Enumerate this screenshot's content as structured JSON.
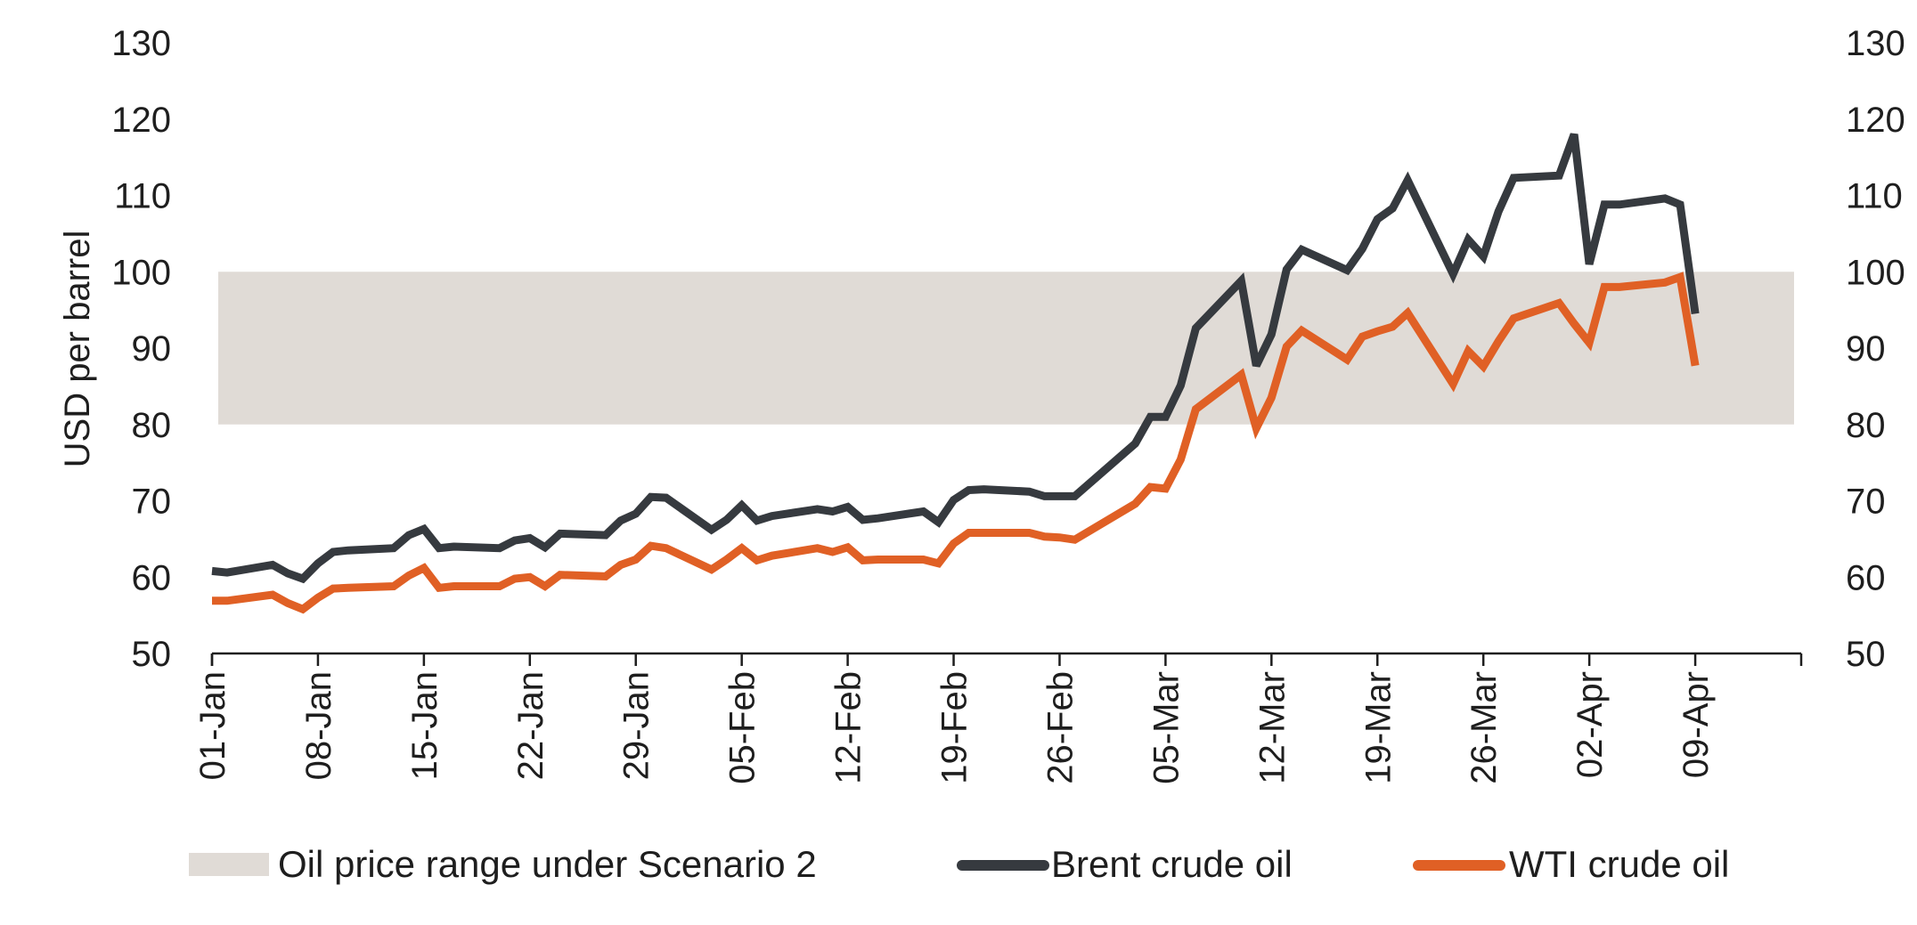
{
  "chart_data": {
    "type": "line",
    "title": "",
    "ylabel": "USD per barrel",
    "ylim": [
      50,
      130
    ],
    "yticks": [
      "50",
      "60",
      "70",
      "80",
      "90",
      "100",
      "110",
      "120",
      "130"
    ],
    "y2ticks": [
      "50",
      "60",
      "70",
      "80",
      "90",
      "100",
      "110",
      "120",
      "130"
    ],
    "x_start": "2022-01-01",
    "xlim": [
      "2022-01-01",
      "2022-04-16"
    ],
    "xticks": [
      {
        "date": "2022-01-01",
        "label": "01-Jan"
      },
      {
        "date": "2022-01-08",
        "label": "08-Jan"
      },
      {
        "date": "2022-01-15",
        "label": "15-Jan"
      },
      {
        "date": "2022-01-22",
        "label": "22-Jan"
      },
      {
        "date": "2022-01-29",
        "label": "29-Jan"
      },
      {
        "date": "2022-02-05",
        "label": "05-Feb"
      },
      {
        "date": "2022-02-12",
        "label": "12-Feb"
      },
      {
        "date": "2022-02-19",
        "label": "19-Feb"
      },
      {
        "date": "2022-02-26",
        "label": "26-Feb"
      },
      {
        "date": "2022-03-05",
        "label": "05-Mar"
      },
      {
        "date": "2022-03-12",
        "label": "12-Mar"
      },
      {
        "date": "2022-03-19",
        "label": "19-Mar"
      },
      {
        "date": "2022-03-26",
        "label": "26-Mar"
      },
      {
        "date": "2022-04-02",
        "label": "02-Apr"
      },
      {
        "date": "2022-04-09",
        "label": "09-Apr"
      }
    ],
    "band": {
      "name": "Oil price range under Scenario 2",
      "low": 80,
      "high": 100,
      "color": "#e0dbd6"
    },
    "legend_position": "bottom",
    "series": [
      {
        "name": "Brent crude oil",
        "color": "#363a3f",
        "x": [
          "2022-01-01",
          "2022-01-02",
          "2022-01-05",
          "2022-01-06",
          "2022-01-07",
          "2022-01-08",
          "2022-01-09",
          "2022-01-10",
          "2022-01-13",
          "2022-01-14",
          "2022-01-15",
          "2022-01-16",
          "2022-01-17",
          "2022-01-20",
          "2022-01-21",
          "2022-01-22",
          "2022-01-23",
          "2022-01-24",
          "2022-01-27",
          "2022-01-28",
          "2022-01-29",
          "2022-01-30",
          "2022-01-31",
          "2022-02-03",
          "2022-02-04",
          "2022-02-05",
          "2022-02-06",
          "2022-02-07",
          "2022-02-10",
          "2022-02-11",
          "2022-02-12",
          "2022-02-13",
          "2022-02-14",
          "2022-02-17",
          "2022-02-18",
          "2022-02-19",
          "2022-02-20",
          "2022-02-21",
          "2022-02-24",
          "2022-02-25",
          "2022-02-27",
          "2022-03-03",
          "2022-03-04",
          "2022-03-05",
          "2022-03-06",
          "2022-03-07",
          "2022-03-10",
          "2022-03-11",
          "2022-03-12",
          "2022-03-13",
          "2022-03-14",
          "2022-03-17",
          "2022-03-18",
          "2022-03-19",
          "2022-03-20",
          "2022-03-21",
          "2022-03-24",
          "2022-03-25",
          "2022-03-26",
          "2022-03-27",
          "2022-03-28",
          "2022-03-31",
          "2022-04-01",
          "2022-04-02",
          "2022-04-03",
          "2022-04-04",
          "2022-04-07",
          "2022-04-08",
          "2022-04-09"
        ],
        "values": [
          60.8,
          60.6,
          61.6,
          60.5,
          59.8,
          61.8,
          63.3,
          63.5,
          63.8,
          65.5,
          66.3,
          63.8,
          64.0,
          63.8,
          64.8,
          65.1,
          63.9,
          65.7,
          65.5,
          67.4,
          68.3,
          70.5,
          70.4,
          66.2,
          67.5,
          69.4,
          67.4,
          68.0,
          68.9,
          68.6,
          69.2,
          67.5,
          67.7,
          68.6,
          67.2,
          70.1,
          71.4,
          71.5,
          71.2,
          70.6,
          70.6,
          77.5,
          81.0,
          81.0,
          85.1,
          92.6,
          98.8,
          87.7,
          91.8,
          100.3,
          102.9,
          100.2,
          103.0,
          106.9,
          108.3,
          112.0,
          99.7,
          104.2,
          102.0,
          107.9,
          112.3,
          112.6,
          118.0,
          101.0,
          108.8,
          108.8,
          109.6,
          108.8,
          94.5
        ]
      },
      {
        "name": "WTI crude oil",
        "color": "#e06025",
        "x": [
          "2022-01-01",
          "2022-01-02",
          "2022-01-05",
          "2022-01-06",
          "2022-01-07",
          "2022-01-08",
          "2022-01-09",
          "2022-01-10",
          "2022-01-13",
          "2022-01-14",
          "2022-01-15",
          "2022-01-16",
          "2022-01-17",
          "2022-01-20",
          "2022-01-21",
          "2022-01-22",
          "2022-01-23",
          "2022-01-24",
          "2022-01-27",
          "2022-01-28",
          "2022-01-29",
          "2022-01-30",
          "2022-01-31",
          "2022-02-03",
          "2022-02-04",
          "2022-02-05",
          "2022-02-06",
          "2022-02-07",
          "2022-02-10",
          "2022-02-11",
          "2022-02-12",
          "2022-02-13",
          "2022-02-14",
          "2022-02-17",
          "2022-02-18",
          "2022-02-19",
          "2022-02-20",
          "2022-02-21",
          "2022-02-24",
          "2022-02-25",
          "2022-02-26",
          "2022-02-27",
          "2022-03-03",
          "2022-03-04",
          "2022-03-05",
          "2022-03-06",
          "2022-03-07",
          "2022-03-10",
          "2022-03-11",
          "2022-03-12",
          "2022-03-13",
          "2022-03-14",
          "2022-03-17",
          "2022-03-18",
          "2022-03-19",
          "2022-03-20",
          "2022-03-21",
          "2022-03-24",
          "2022-03-25",
          "2022-03-26",
          "2022-03-27",
          "2022-03-28",
          "2022-03-31",
          "2022-04-01",
          "2022-04-02",
          "2022-04-03",
          "2022-04-04",
          "2022-04-07",
          "2022-04-08",
          "2022-04-09"
        ],
        "values": [
          56.9,
          56.9,
          57.7,
          56.6,
          55.8,
          57.3,
          58.5,
          58.6,
          58.8,
          60.2,
          61.2,
          58.6,
          58.8,
          58.8,
          59.8,
          60.0,
          58.8,
          60.3,
          60.1,
          61.6,
          62.3,
          64.1,
          63.8,
          61.0,
          62.3,
          63.8,
          62.2,
          62.8,
          63.8,
          63.3,
          63.9,
          62.2,
          62.3,
          62.3,
          61.8,
          64.4,
          65.8,
          65.8,
          65.8,
          65.3,
          65.2,
          64.9,
          69.6,
          71.8,
          71.6,
          75.4,
          82.0,
          86.5,
          79.5,
          83.5,
          90.2,
          92.3,
          88.5,
          91.5,
          92.2,
          92.8,
          94.6,
          85.3,
          89.6,
          87.6,
          90.9,
          93.9,
          95.9,
          93.2,
          90.7,
          98.0,
          98.0,
          98.6,
          99.3,
          87.7
        ]
      }
    ]
  }
}
